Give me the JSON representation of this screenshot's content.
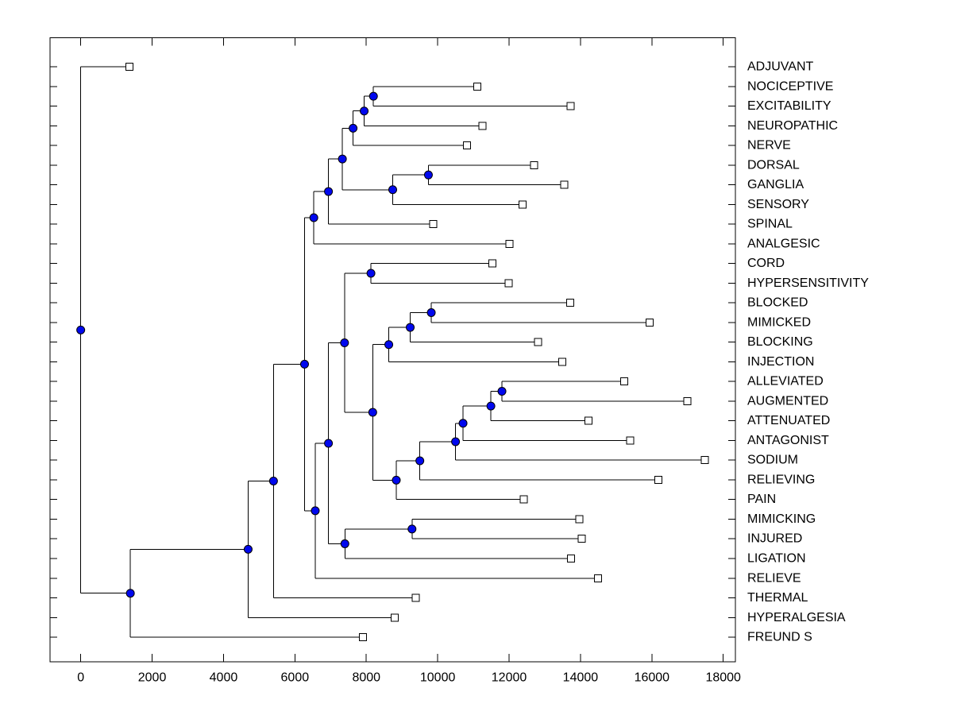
{
  "figure": {
    "background": "#ffffff",
    "colors": {
      "line": "#000000",
      "plot_border": "#000000",
      "internal_node_fill": "#0008ee",
      "internal_node_stroke": "#000000",
      "leaf_marker_fill": "#ffffff",
      "leaf_marker_stroke": "#000000",
      "text": "#000000"
    }
  },
  "chart_data": {
    "type": "dendrogram",
    "orientation": "horizontal-root-left",
    "title": "",
    "xlabel": "",
    "ylabel": "",
    "grid": false,
    "legend": false,
    "leaf_labels_position": "right",
    "xlim": [
      -860,
      18340
    ],
    "x_ticks": [
      0,
      2000,
      4000,
      6000,
      8000,
      10000,
      12000,
      14000,
      16000,
      18000
    ],
    "leaves": [
      {
        "id": "L0",
        "label": "ADJUVANT",
        "x": 1370
      },
      {
        "id": "L1",
        "label": "NOCICEPTIVE",
        "x": 11110
      },
      {
        "id": "L2",
        "label": "EXCITABILITY",
        "x": 13720
      },
      {
        "id": "L3",
        "label": "NEUROPATHIC",
        "x": 11250
      },
      {
        "id": "L4",
        "label": "NERVE",
        "x": 10820
      },
      {
        "id": "L5",
        "label": "DORSAL",
        "x": 12700
      },
      {
        "id": "L6",
        "label": "GANGLIA",
        "x": 13550
      },
      {
        "id": "L7",
        "label": "SENSORY",
        "x": 12380
      },
      {
        "id": "L8",
        "label": "SPINAL",
        "x": 9870
      },
      {
        "id": "L9",
        "label": "ANALGESIC",
        "x": 12010
      },
      {
        "id": "L10",
        "label": "CORD",
        "x": 11530
      },
      {
        "id": "L11",
        "label": "HYPERSENSITIVITY",
        "x": 11990
      },
      {
        "id": "L12",
        "label": "BLOCKED",
        "x": 13710
      },
      {
        "id": "L13",
        "label": "MIMICKED",
        "x": 15940
      },
      {
        "id": "L14",
        "label": "BLOCKING",
        "x": 12810
      },
      {
        "id": "L15",
        "label": "INJECTION",
        "x": 13490
      },
      {
        "id": "L16",
        "label": "ALLEVIATED",
        "x": 15230
      },
      {
        "id": "L17",
        "label": "AUGMENTED",
        "x": 16990
      },
      {
        "id": "L18",
        "label": "ATTENUATED",
        "x": 14220
      },
      {
        "id": "L19",
        "label": "ANTAGONIST",
        "x": 15390
      },
      {
        "id": "L20",
        "label": "SODIUM",
        "x": 17480
      },
      {
        "id": "L21",
        "label": "RELIEVING",
        "x": 16180
      },
      {
        "id": "L22",
        "label": "PAIN",
        "x": 12410
      },
      {
        "id": "L23",
        "label": "MIMICKING",
        "x": 13970
      },
      {
        "id": "L24",
        "label": "INJURED",
        "x": 14040
      },
      {
        "id": "L25",
        "label": "LIGATION",
        "x": 13740
      },
      {
        "id": "L26",
        "label": "RELIEVE",
        "x": 14490
      },
      {
        "id": "L27",
        "label": "THERMAL",
        "x": 9390
      },
      {
        "id": "L28",
        "label": "HYPERALGESIA",
        "x": 8800
      },
      {
        "id": "L29",
        "label": "FREUND S",
        "x": 7910
      }
    ],
    "merges": [
      {
        "id": "M0",
        "x": 8200,
        "top": "L1",
        "bottom": "L2"
      },
      {
        "id": "M1",
        "x": 7940,
        "top": "M0",
        "bottom": "L3"
      },
      {
        "id": "M2",
        "x": 7630,
        "top": "M1",
        "bottom": "L4"
      },
      {
        "id": "M3",
        "x": 9740,
        "top": "L5",
        "bottom": "L6"
      },
      {
        "id": "M4",
        "x": 8740,
        "top": "M3",
        "bottom": "L7"
      },
      {
        "id": "M5",
        "x": 7330,
        "top": "M2",
        "bottom": "M4"
      },
      {
        "id": "M6",
        "x": 6940,
        "top": "M5",
        "bottom": "L8"
      },
      {
        "id": "M7",
        "x": 6530,
        "top": "M6",
        "bottom": "L9"
      },
      {
        "id": "M8",
        "x": 8130,
        "top": "L10",
        "bottom": "L11"
      },
      {
        "id": "M9",
        "x": 9820,
        "top": "L12",
        "bottom": "L13"
      },
      {
        "id": "M10",
        "x": 9230,
        "top": "M9",
        "bottom": "L14"
      },
      {
        "id": "M11",
        "x": 8630,
        "top": "M10",
        "bottom": "L15"
      },
      {
        "id": "M12",
        "x": 11800,
        "top": "L16",
        "bottom": "L17"
      },
      {
        "id": "M13",
        "x": 11490,
        "top": "M12",
        "bottom": "L18"
      },
      {
        "id": "M14",
        "x": 10710,
        "top": "M13",
        "bottom": "L19"
      },
      {
        "id": "M15",
        "x": 10500,
        "top": "M14",
        "bottom": "L20"
      },
      {
        "id": "M16",
        "x": 9500,
        "top": "M15",
        "bottom": "L21"
      },
      {
        "id": "M17",
        "x": 8840,
        "top": "M16",
        "bottom": "L22"
      },
      {
        "id": "M18",
        "x": 8180,
        "top": "M11",
        "bottom": "M17"
      },
      {
        "id": "M19",
        "x": 7390,
        "top": "M8",
        "bottom": "M18"
      },
      {
        "id": "M20",
        "x": 9280,
        "top": "L23",
        "bottom": "L24"
      },
      {
        "id": "M21",
        "x": 7400,
        "top": "M20",
        "bottom": "L25"
      },
      {
        "id": "M22",
        "x": 6940,
        "top": "M19",
        "bottom": "M21"
      },
      {
        "id": "M23",
        "x": 6570,
        "top": "M22",
        "bottom": "L26"
      },
      {
        "id": "M24",
        "x": 6270,
        "top": "M7",
        "bottom": "M23"
      },
      {
        "id": "M25",
        "x": 5400,
        "top": "M24",
        "bottom": "L27"
      },
      {
        "id": "M26",
        "x": 4690,
        "top": "M25",
        "bottom": "L28"
      },
      {
        "id": "M27",
        "x": 1390,
        "top": "M26",
        "bottom": "L29"
      },
      {
        "id": "M28",
        "x": 0,
        "top": "L0",
        "bottom": "M27"
      }
    ]
  }
}
